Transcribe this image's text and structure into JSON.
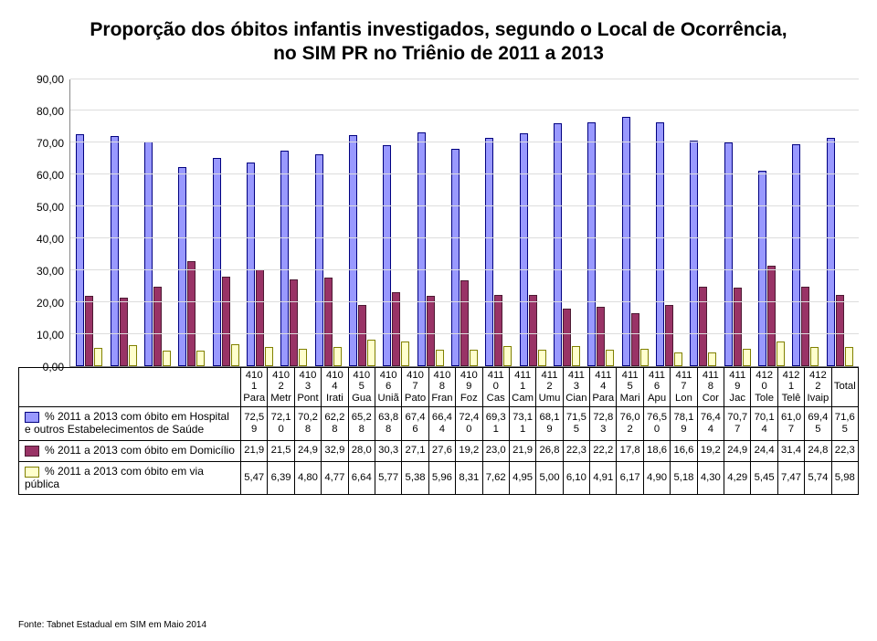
{
  "title_line1": "Proporção dos óbitos infantis investigados, segundo o Local de Ocorrência,",
  "title_line2": "no SIM PR no Triênio de 2011 a 2013",
  "footer": "Fonte: Tabnet Estadual em SIM em Maio 2014",
  "chart": {
    "type": "bar",
    "ylim": [
      0,
      90
    ],
    "ytick_step": 10,
    "ytick_labels": [
      "0,00",
      "10,00",
      "20,00",
      "30,00",
      "40,00",
      "50,00",
      "60,00",
      "70,00",
      "80,00",
      "90,00"
    ],
    "background_color": "#ffffff",
    "grid_color": "#dddddd",
    "series": [
      {
        "name": "% 2011 a 2013 com óbito em Hospital e outros Estabelecimentos de Saúde",
        "color": "#9999ff",
        "border": "#000080"
      },
      {
        "name": "% 2011 a 2013 com óbito em Domicílio",
        "color": "#993366",
        "border": "#4d1a33"
      },
      {
        "name": "% 2011 a 2013 com óbito em via pública",
        "color": "#ffffcc",
        "border": "#808000"
      }
    ],
    "categories": [
      {
        "code": "4101",
        "name": "Para",
        "v": [
          72.59,
          21.9,
          5.47
        ],
        "disp": [
          "72,59",
          "21,9",
          "5,47"
        ]
      },
      {
        "code": "4102",
        "name": "Metr",
        "v": [
          72.1,
          21.5,
          6.39
        ],
        "disp": [
          "72,10",
          "21,5",
          "6,39"
        ]
      },
      {
        "code": "4103",
        "name": "Pont",
        "v": [
          70.28,
          24.9,
          4.8
        ],
        "disp": [
          "70,28",
          "24,9",
          "4,80"
        ]
      },
      {
        "code": "4104",
        "name": "Irati",
        "v": [
          62.28,
          32.9,
          4.77
        ],
        "disp": [
          "62,28",
          "32,9",
          "4,77"
        ]
      },
      {
        "code": "4105",
        "name": "Gua",
        "v": [
          65.28,
          28.0,
          6.64
        ],
        "disp": [
          "65,28",
          "28,0",
          "6,64"
        ]
      },
      {
        "code": "4106",
        "name": "Uniã",
        "v": [
          63.88,
          30.3,
          5.77
        ],
        "disp": [
          "63,88",
          "30,3",
          "5,77"
        ]
      },
      {
        "code": "4107",
        "name": "Pato",
        "v": [
          67.46,
          27.1,
          5.38
        ],
        "disp": [
          "67,46",
          "27,1",
          "5,38"
        ]
      },
      {
        "code": "4108",
        "name": "Fran",
        "v": [
          66.44,
          27.6,
          5.96
        ],
        "disp": [
          "66,44",
          "27,6",
          "5,96"
        ]
      },
      {
        "code": "4109",
        "name": "Foz",
        "v": [
          72.4,
          19.2,
          8.31
        ],
        "disp": [
          "72,40",
          "19,2",
          "8,31"
        ]
      },
      {
        "code": "4110",
        "name": "Cas",
        "v": [
          69.31,
          23.0,
          7.62
        ],
        "disp": [
          "69,31",
          "23,0",
          "7,62"
        ]
      },
      {
        "code": "4111",
        "name": "Cam",
        "v": [
          73.11,
          21.9,
          4.95
        ],
        "disp": [
          "73,11",
          "21,9",
          "4,95"
        ]
      },
      {
        "code": "4112",
        "name": "Umu",
        "v": [
          68.19,
          26.8,
          5.0
        ],
        "disp": [
          "68,19",
          "26,8",
          "5,00"
        ]
      },
      {
        "code": "4113",
        "name": "Cian",
        "v": [
          71.55,
          22.3,
          6.1
        ],
        "disp": [
          "71,55",
          "22,3",
          "6,10"
        ]
      },
      {
        "code": "4114",
        "name": "Para",
        "v": [
          72.83,
          22.2,
          4.91
        ],
        "disp": [
          "72,83",
          "22,2",
          "4,91"
        ]
      },
      {
        "code": "4115",
        "name": "Mari",
        "v": [
          76.02,
          17.8,
          6.17
        ],
        "disp": [
          "76,02",
          "17,8",
          "6,17"
        ]
      },
      {
        "code": "4116",
        "name": "Apu",
        "v": [
          76.5,
          18.6,
          4.9
        ],
        "disp": [
          "76,50",
          "18,6",
          "4,90"
        ]
      },
      {
        "code": "4117",
        "name": "Lon",
        "v": [
          78.19,
          16.6,
          5.18
        ],
        "disp": [
          "78,19",
          "16,6",
          "5,18"
        ]
      },
      {
        "code": "4118",
        "name": "Cor",
        "v": [
          76.44,
          19.2,
          4.3
        ],
        "disp": [
          "76,44",
          "19,2",
          "4,30"
        ]
      },
      {
        "code": "4119",
        "name": "Jac",
        "v": [
          70.77,
          24.9,
          4.29
        ],
        "disp": [
          "70,77",
          "24,9",
          "4,29"
        ]
      },
      {
        "code": "4120",
        "name": "Tole",
        "v": [
          70.14,
          24.4,
          5.45
        ],
        "disp": [
          "70,14",
          "24,4",
          "5,45"
        ]
      },
      {
        "code": "4121",
        "name": "Telê",
        "v": [
          61.07,
          31.4,
          7.47
        ],
        "disp": [
          "61,07",
          "31,4",
          "7,47"
        ]
      },
      {
        "code": "4122",
        "name": "Ivaip",
        "v": [
          69.45,
          24.8,
          5.74
        ],
        "disp": [
          "69,45",
          "24,8",
          "5,74"
        ]
      },
      {
        "code": "Total",
        "name": "",
        "v": [
          71.65,
          22.3,
          5.98
        ],
        "disp": [
          "71,65",
          "22,3",
          "5,98"
        ]
      }
    ]
  }
}
